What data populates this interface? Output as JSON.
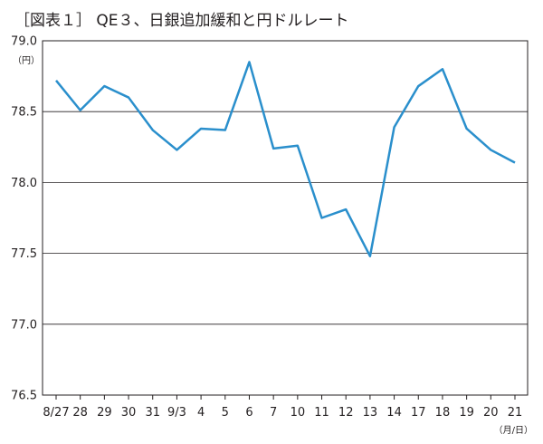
{
  "chart_data": {
    "type": "line",
    "title": "［図表１］ QE３、日銀追加緩和と円ドルレート",
    "y_unit": "（円）",
    "x_unit": "（月/日）",
    "ylim": [
      76.5,
      79.0
    ],
    "y_ticks": [
      "79.0",
      "78.5",
      "78.0",
      "77.5",
      "77.0",
      "76.5"
    ],
    "grid": "horizontal",
    "categories": [
      "8/27",
      "28",
      "29",
      "30",
      "31",
      "9/3",
      "4",
      "5",
      "6",
      "7",
      "10",
      "11",
      "12",
      "13",
      "14",
      "17",
      "18",
      "19",
      "20",
      "21"
    ],
    "series": [
      {
        "color": "#2a8fcc",
        "values": [
          78.72,
          78.51,
          78.68,
          78.6,
          78.37,
          78.23,
          78.38,
          78.37,
          78.85,
          78.24,
          78.26,
          77.75,
          77.81,
          77.48,
          78.39,
          78.68,
          78.8,
          78.38,
          78.23,
          78.14
        ]
      }
    ]
  }
}
